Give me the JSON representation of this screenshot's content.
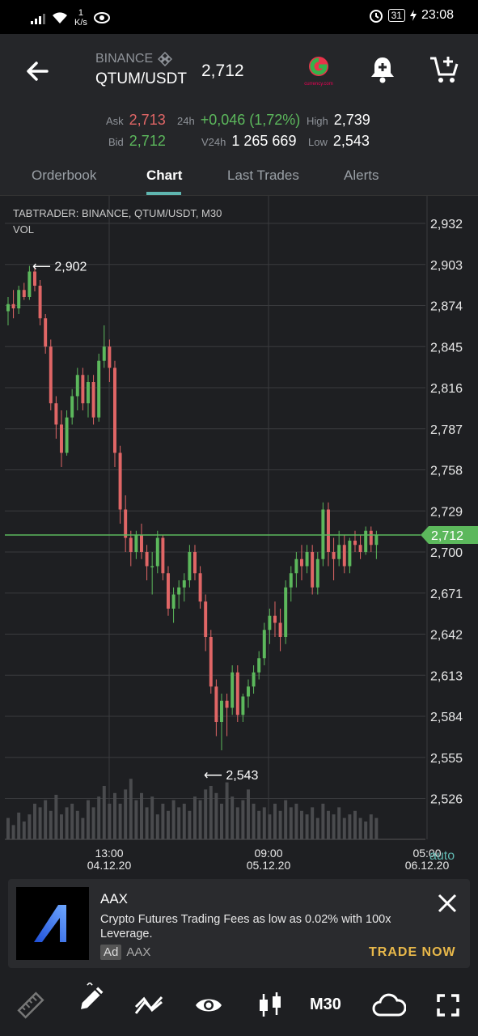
{
  "status_bar": {
    "speed_value": "1",
    "speed_unit": "K/s",
    "battery": "31",
    "time": "23:08"
  },
  "header": {
    "exchange": "BINANCE",
    "pair": "QTUM/USDT",
    "last_price": "2,712",
    "logo_caption": "currency.com"
  },
  "stats": {
    "ask_label": "Ask",
    "ask": "2,713",
    "bid_label": "Bid",
    "bid": "2,712",
    "change_label": "24h",
    "change": "+0,046 (1,72%)",
    "volume_label": "V24h",
    "volume": "1 265 669",
    "high_label": "High",
    "high": "2,739",
    "low_label": "Low",
    "low": "2,543"
  },
  "tabs": [
    {
      "label": "Orderbook"
    },
    {
      "label": "Chart"
    },
    {
      "label": "Last Trades"
    },
    {
      "label": "Alerts"
    }
  ],
  "chart_meta": {
    "title": "TABTRADER: BINANCE, QTUM/USDT, M30",
    "vol_label": "VOL",
    "auto_label": "auto"
  },
  "chart_data": {
    "type": "candlestick",
    "y_ticks": [
      "2,932",
      "2,903",
      "2,874",
      "2,845",
      "2,816",
      "2,787",
      "2,758",
      "2,729",
      "2,700",
      "2,671",
      "2,642",
      "2,613",
      "2,584",
      "2,555",
      "2,526"
    ],
    "ylim": [
      2.5,
      2.94
    ],
    "x_ticks": [
      {
        "time": "13:00",
        "date": "04.12.20"
      },
      {
        "time": "09:00",
        "date": "05.12.20"
      },
      {
        "time": "05:00",
        "date": "06.12.20"
      }
    ],
    "current_price": 2.712,
    "current_price_label": "2,712",
    "annotations": [
      {
        "label": "2,902",
        "value": 2.902
      },
      {
        "label": "2,543",
        "value": 2.543
      }
    ],
    "candles": [
      [
        2.87,
        2.88,
        2.86,
        2.875
      ],
      [
        2.875,
        2.885,
        2.865,
        2.872
      ],
      [
        2.872,
        2.888,
        2.868,
        2.885
      ],
      [
        2.885,
        2.89,
        2.878,
        2.88
      ],
      [
        2.88,
        2.902,
        2.878,
        2.898
      ],
      [
        2.898,
        2.902,
        2.884,
        2.888
      ],
      [
        2.888,
        2.892,
        2.86,
        2.865
      ],
      [
        2.865,
        2.868,
        2.84,
        2.845
      ],
      [
        2.845,
        2.85,
        2.8,
        2.805
      ],
      [
        2.805,
        2.81,
        2.78,
        2.79
      ],
      [
        2.79,
        2.8,
        2.76,
        2.77
      ],
      [
        2.77,
        2.8,
        2.768,
        2.795
      ],
      [
        2.795,
        2.815,
        2.79,
        2.81
      ],
      [
        2.81,
        2.83,
        2.8,
        2.825
      ],
      [
        2.825,
        2.83,
        2.8,
        2.805
      ],
      [
        2.805,
        2.825,
        2.795,
        2.82
      ],
      [
        2.82,
        2.825,
        2.79,
        2.795
      ],
      [
        2.795,
        2.84,
        2.792,
        2.835
      ],
      [
        2.835,
        2.86,
        2.83,
        2.845
      ],
      [
        2.845,
        2.85,
        2.82,
        2.83
      ],
      [
        2.83,
        2.835,
        2.76,
        2.77
      ],
      [
        2.77,
        2.775,
        2.72,
        2.73
      ],
      [
        2.73,
        2.74,
        2.7,
        2.71
      ],
      [
        2.71,
        2.715,
        2.69,
        2.7
      ],
      [
        2.7,
        2.715,
        2.695,
        2.712
      ],
      [
        2.712,
        2.72,
        2.695,
        2.7
      ],
      [
        2.7,
        2.705,
        2.68,
        2.69
      ],
      [
        2.69,
        2.7,
        2.67,
        2.69
      ],
      [
        2.69,
        2.715,
        2.685,
        2.71
      ],
      [
        2.71,
        2.712,
        2.68,
        2.685
      ],
      [
        2.685,
        2.69,
        2.655,
        2.66
      ],
      [
        2.66,
        2.675,
        2.65,
        2.67
      ],
      [
        2.67,
        2.68,
        2.66,
        2.675
      ],
      [
        2.675,
        2.685,
        2.665,
        2.68
      ],
      [
        2.68,
        2.705,
        2.675,
        2.7
      ],
      [
        2.7,
        2.705,
        2.68,
        2.685
      ],
      [
        2.685,
        2.69,
        2.66,
        2.665
      ],
      [
        2.665,
        2.67,
        2.63,
        2.64
      ],
      [
        2.64,
        2.645,
        2.6,
        2.605
      ],
      [
        2.605,
        2.61,
        2.57,
        2.58
      ],
      [
        2.58,
        2.6,
        2.56,
        2.595
      ],
      [
        2.595,
        2.6,
        2.57,
        2.59
      ],
      [
        2.59,
        2.62,
        2.585,
        2.615
      ],
      [
        2.615,
        2.62,
        2.58,
        2.585
      ],
      [
        2.585,
        2.6,
        2.58,
        2.598
      ],
      [
        2.598,
        2.61,
        2.59,
        2.605
      ],
      [
        2.605,
        2.62,
        2.6,
        2.615
      ],
      [
        2.615,
        2.63,
        2.61,
        2.625
      ],
      [
        2.625,
        2.65,
        2.62,
        2.645
      ],
      [
        2.645,
        2.66,
        2.635,
        2.655
      ],
      [
        2.655,
        2.665,
        2.64,
        2.65
      ],
      [
        2.65,
        2.66,
        2.63,
        2.64
      ],
      [
        2.64,
        2.68,
        2.635,
        2.675
      ],
      [
        2.675,
        2.69,
        2.665,
        2.685
      ],
      [
        2.685,
        2.7,
        2.675,
        2.695
      ],
      [
        2.695,
        2.705,
        2.68,
        2.69
      ],
      [
        2.69,
        2.705,
        2.685,
        2.7
      ],
      [
        2.7,
        2.705,
        2.67,
        2.675
      ],
      [
        2.675,
        2.7,
        2.67,
        2.695
      ],
      [
        2.695,
        2.735,
        2.69,
        2.73
      ],
      [
        2.73,
        2.735,
        2.69,
        2.7
      ],
      [
        2.7,
        2.71,
        2.68,
        2.695
      ],
      [
        2.695,
        2.715,
        2.69,
        2.705
      ],
      [
        2.705,
        2.712,
        2.685,
        2.69
      ],
      [
        2.69,
        2.71,
        2.685,
        2.708
      ],
      [
        2.708,
        2.715,
        2.7,
        2.705
      ],
      [
        2.705,
        2.712,
        2.695,
        2.7
      ],
      [
        2.7,
        2.718,
        2.698,
        2.715
      ],
      [
        2.715,
        2.718,
        2.7,
        2.705
      ],
      [
        2.705,
        2.715,
        2.695,
        2.712
      ]
    ],
    "volumes": [
      12,
      8,
      15,
      10,
      14,
      20,
      18,
      22,
      16,
      25,
      14,
      18,
      20,
      16,
      12,
      22,
      18,
      24,
      30,
      20,
      26,
      20,
      28,
      34,
      22,
      26,
      18,
      24,
      14,
      20,
      16,
      22,
      18,
      20,
      16,
      24,
      22,
      28,
      30,
      26,
      20,
      32,
      24,
      18,
      22,
      28,
      20,
      16,
      18,
      14,
      20,
      16,
      22,
      18,
      20,
      16,
      14,
      18,
      12,
      20,
      16,
      14,
      18,
      12,
      14,
      16,
      12,
      10,
      14,
      12
    ]
  },
  "ad": {
    "title": "AAX",
    "body": "Crypto Futures Trading Fees as low as 0.02% with 100x Leverage.",
    "badge": "Ad",
    "advertiser": "AAX",
    "cta": "TRADE NOW"
  },
  "toolbar": {
    "timeframe": "M30"
  }
}
